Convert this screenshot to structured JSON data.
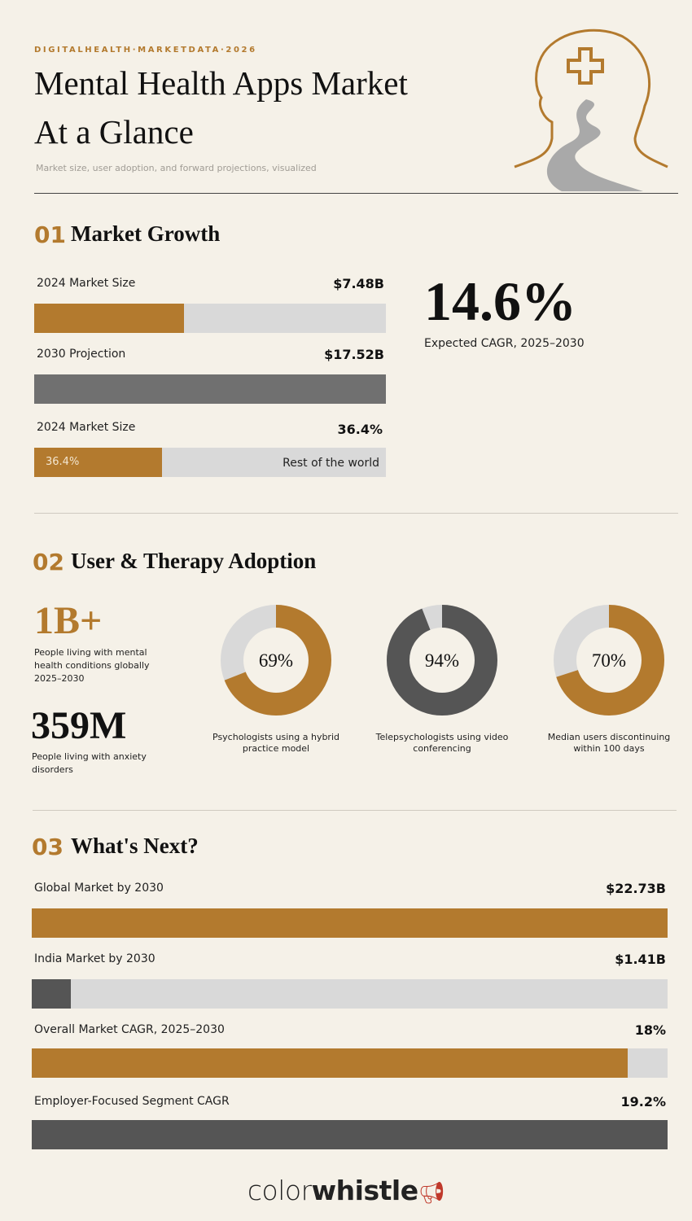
{
  "header": {
    "kicker": "DIGITALHEALTH·MARKETDATA·2026",
    "title_line1": "Mental Health Apps Market",
    "title_line2": "At a Glance",
    "subtitle": "Market size, user adoption, and forward projections, visualized"
  },
  "market_growth": {
    "number": "01",
    "title": "Market Growth",
    "size_bars": [
      {
        "label": "2024 Market Size",
        "value": 7.48,
        "value_label": "$7.48B",
        "color": "#b37a2e"
      },
      {
        "label": "2030 Projection",
        "value": 17.52,
        "value_label": "$17.52B",
        "color": "#707070"
      }
    ],
    "share_bar": {
      "label": "2024 Market Size",
      "value": 36.4,
      "value_label": "36.4%",
      "inner_label": "36.4%",
      "rest_label": "Rest of the world",
      "color": "#b37a2e"
    },
    "cagr": {
      "value": 14.6,
      "value_label": "14.6%",
      "caption": "Expected CAGR, 2025–2030"
    }
  },
  "adoption": {
    "number": "02",
    "title": "User & Therapy Adoption",
    "stats": [
      {
        "value": "1B+",
        "caption": "People living with mental health conditions globally 2025–2030"
      },
      {
        "value": "359M",
        "caption": "People living with anxiety disorders"
      }
    ],
    "donuts": [
      {
        "value": 69,
        "value_label": "69%",
        "caption": "Psychologists using a hybrid practice model",
        "color": "#b37a2e"
      },
      {
        "value": 94,
        "value_label": "94%",
        "caption": "Telepsychologists using video conferencing",
        "color": "#555555"
      },
      {
        "value": 70,
        "value_label": "70%",
        "caption": "Median users discontinuing within 100 days",
        "color": "#b37a2e"
      }
    ]
  },
  "outlook": {
    "number": "03",
    "title": "What's Next?",
    "market_bars": [
      {
        "label": "Global Market by 2030",
        "value": 22.73,
        "value_label": "$22.73B",
        "color": "#b37a2e"
      },
      {
        "label": "India Market by 2030",
        "value": 1.41,
        "value_label": "$1.41B",
        "color": "#555555"
      }
    ],
    "growth_bars": [
      {
        "label": "Overall Market CAGR, 2025–2030",
        "value": 18,
        "value_label": "18%",
        "color": "#b37a2e"
      },
      {
        "label": "Employer-Focused Segment CAGR",
        "value": 19.2,
        "value_label": "19.2%",
        "color": "#555555"
      }
    ]
  },
  "footer": {
    "brand_light": "color",
    "brand_bold": "whistle"
  }
}
